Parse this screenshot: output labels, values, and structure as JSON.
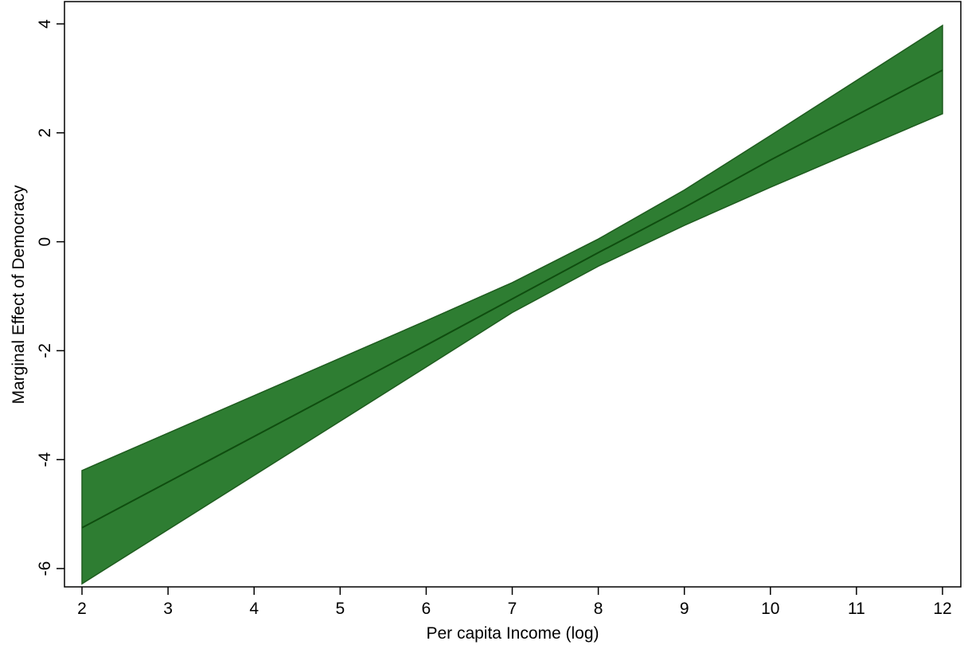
{
  "chart_data": {
    "type": "area",
    "title": "",
    "xlabel": "Per capita Income (log)",
    "ylabel": "Marginal Effect of Democracy",
    "xlim": [
      2,
      12
    ],
    "ylim": [
      -6.3,
      4
    ],
    "x_ticks": [
      2,
      3,
      4,
      5,
      6,
      7,
      8,
      9,
      10,
      11,
      12
    ],
    "y_ticks": [
      -6,
      -4,
      -2,
      0,
      2,
      4
    ],
    "grid": false,
    "legend": "none",
    "colors": {
      "band_fill": "#2e7d32",
      "band_edge": "#1e5c1e",
      "line": "#0f4d0f"
    },
    "x": [
      2,
      6,
      7,
      8,
      9,
      10,
      12
    ],
    "series": [
      {
        "role": "lower",
        "values": [
          -6.28,
          -2.3,
          -1.3,
          -0.45,
          0.3,
          1.0,
          2.35
        ]
      },
      {
        "role": "estimate",
        "values": [
          -5.25,
          -1.9,
          -1.05,
          -0.2,
          0.63,
          1.5,
          3.15
        ]
      },
      {
        "role": "upper",
        "values": [
          -4.2,
          -1.45,
          -0.75,
          0.05,
          0.95,
          1.95,
          3.97
        ]
      }
    ]
  }
}
